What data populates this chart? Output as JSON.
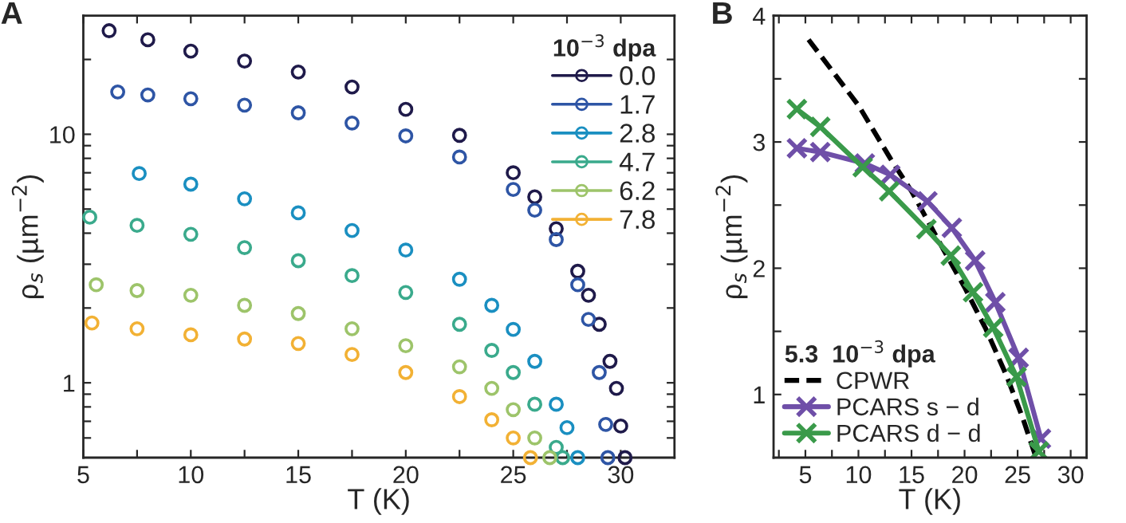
{
  "chart_data": [
    {
      "type": "scatter",
      "title": "A",
      "xlabel": "T (K)",
      "ylabel": "ρ$_{s}$ (µm$^{−2}$)",
      "legend_title": "10$^{−3}$ dpa",
      "legend": "top right",
      "marker": "circle",
      "log": "y",
      "xlim": [
        5,
        32.5
      ],
      "ylim": [
        0.5,
        30
      ],
      "xticks": [
        5,
        {
          "value": 7.5,
          "label": null
        },
        10,
        {
          "value": 12.5,
          "label": null
        },
        15,
        {
          "value": 17.5,
          "label": null
        },
        20,
        {
          "value": 22.5,
          "label": null
        },
        25,
        {
          "value": 27.5,
          "label": null
        },
        30
      ],
      "yticks": [
        {
          "value": 0.6,
          "label": null
        },
        {
          "value": 0.7,
          "label": null
        },
        {
          "value": 0.8,
          "label": null
        },
        {
          "value": 0.9,
          "label": null
        },
        1,
        {
          "value": 2,
          "label": null
        },
        {
          "value": 3,
          "label": null
        },
        {
          "value": 4,
          "label": null
        },
        {
          "value": 5,
          "label": null
        },
        {
          "value": 6,
          "label": null
        },
        {
          "value": 7,
          "label": null
        },
        {
          "value": 8,
          "label": null
        },
        {
          "value": 9,
          "label": null
        },
        10,
        {
          "value": 20,
          "label": null
        }
      ],
      "series": [
        {
          "name": "0.0",
          "color": "#1f1a4a",
          "x": [
            6.2,
            8,
            10,
            12.5,
            15,
            17.5,
            20,
            22.5,
            25,
            26,
            27,
            28,
            28.5,
            29,
            29.5,
            29.8,
            30,
            30.2
          ],
          "values": [
            26.1,
            24,
            21.6,
            19.7,
            17.8,
            15.5,
            12.6,
            9.9,
            7.0,
            5.6,
            4.17,
            2.81,
            2.25,
            1.72,
            1.22,
            0.95,
            0.67,
            0.5
          ]
        },
        {
          "name": "1.7",
          "color": "#2e55a5",
          "x": [
            6.6,
            8,
            10,
            12.5,
            15,
            17.5,
            20,
            22.5,
            25,
            26,
            27,
            28,
            28.5,
            29,
            29.3,
            29.4
          ],
          "values": [
            14.8,
            14.4,
            13.9,
            13.1,
            12.2,
            11.1,
            9.85,
            8.1,
            6.0,
            4.95,
            3.77,
            2.48,
            1.8,
            1.1,
            0.68,
            0.5
          ]
        },
        {
          "name": "2.8",
          "color": "#1a8fc1",
          "x": [
            7.6,
            10,
            12.5,
            15,
            17.5,
            20,
            22.5,
            24,
            25,
            26,
            27,
            27.5,
            28
          ],
          "values": [
            6.95,
            6.3,
            5.5,
            4.83,
            4.1,
            3.42,
            2.61,
            2.05,
            1.64,
            1.22,
            0.82,
            0.66,
            0.5
          ]
        },
        {
          "name": "4.7",
          "color": "#3aaa8c",
          "x": [
            5.3,
            7.5,
            10,
            12.5,
            15,
            17.5,
            20,
            22.5,
            24,
            25,
            26,
            27,
            27.3
          ],
          "values": [
            4.64,
            4.3,
            3.96,
            3.5,
            3.1,
            2.7,
            2.31,
            1.72,
            1.35,
            1.1,
            0.82,
            0.55,
            0.5
          ]
        },
        {
          "name": "6.2",
          "color": "#9dc46a",
          "x": [
            5.6,
            7.5,
            10,
            12.5,
            15,
            17.5,
            20,
            22.5,
            24,
            25,
            26,
            26.7
          ],
          "values": [
            2.48,
            2.35,
            2.25,
            2.05,
            1.9,
            1.65,
            1.41,
            1.16,
            0.95,
            0.78,
            0.6,
            0.5
          ]
        },
        {
          "name": "7.8",
          "color": "#f2b134",
          "x": [
            5.4,
            7.5,
            10,
            12.5,
            15,
            17.5,
            20,
            22.5,
            24,
            25,
            25.8
          ],
          "values": [
            1.74,
            1.65,
            1.56,
            1.5,
            1.44,
            1.3,
            1.1,
            0.88,
            0.71,
            0.6,
            0.5
          ]
        }
      ]
    },
    {
      "type": "line",
      "title": "B",
      "xlabel": "T (K)",
      "ylabel": "ρ$_{s}$ (µm$^{−2}$)",
      "legend_title": "5.3  10$^{−3}$ dpa",
      "legend": "bottom left",
      "xlim": [
        2,
        31.5
      ],
      "ylim": [
        0.5,
        4
      ],
      "xticks": [
        {
          "value": 2.5,
          "label": null
        },
        5,
        {
          "value": 7.5,
          "label": null
        },
        10,
        {
          "value": 12.5,
          "label": null
        },
        15,
        {
          "value": 17.5,
          "label": null
        },
        20,
        {
          "value": 22.5,
          "label": null
        },
        25,
        {
          "value": 27.5,
          "label": null
        },
        30
      ],
      "yticks": [
        1,
        {
          "value": 1.5,
          "label": null
        },
        2,
        {
          "value": 2.5,
          "label": null
        },
        3,
        {
          "value": 3.5,
          "label": null
        },
        4
      ],
      "series": [
        {
          "name": "CPWR",
          "color": "#000000",
          "line_style": "dashed",
          "marker": "none",
          "x": [
            5.3,
            10,
            13,
            15,
            18,
            20,
            22,
            24,
            25.5,
            26.7
          ],
          "values": [
            3.81,
            3.29,
            2.87,
            2.61,
            2.15,
            1.85,
            1.52,
            1.14,
            0.81,
            0.51
          ]
        },
        {
          "name": "PCARS s − d",
          "color": "#6f4fa8",
          "line_style": "solid",
          "marker": "cross",
          "x": [
            4.2,
            6.4,
            10.6,
            13.0,
            16.5,
            18.8,
            21.0,
            22.9,
            25.1,
            27.2
          ],
          "values": [
            2.95,
            2.92,
            2.83,
            2.74,
            2.53,
            2.32,
            2.06,
            1.73,
            1.29,
            0.65
          ]
        },
        {
          "name": "PCARS d − d",
          "color": "#3a9a4a",
          "line_style": "solid",
          "marker": "cross",
          "x": [
            4.2,
            6.4,
            10.4,
            12.9,
            16.4,
            18.7,
            20.8,
            22.7,
            24.9,
            27.0
          ],
          "values": [
            3.26,
            3.12,
            2.8,
            2.61,
            2.31,
            2.1,
            1.81,
            1.53,
            1.14,
            0.55
          ]
        }
      ]
    }
  ]
}
